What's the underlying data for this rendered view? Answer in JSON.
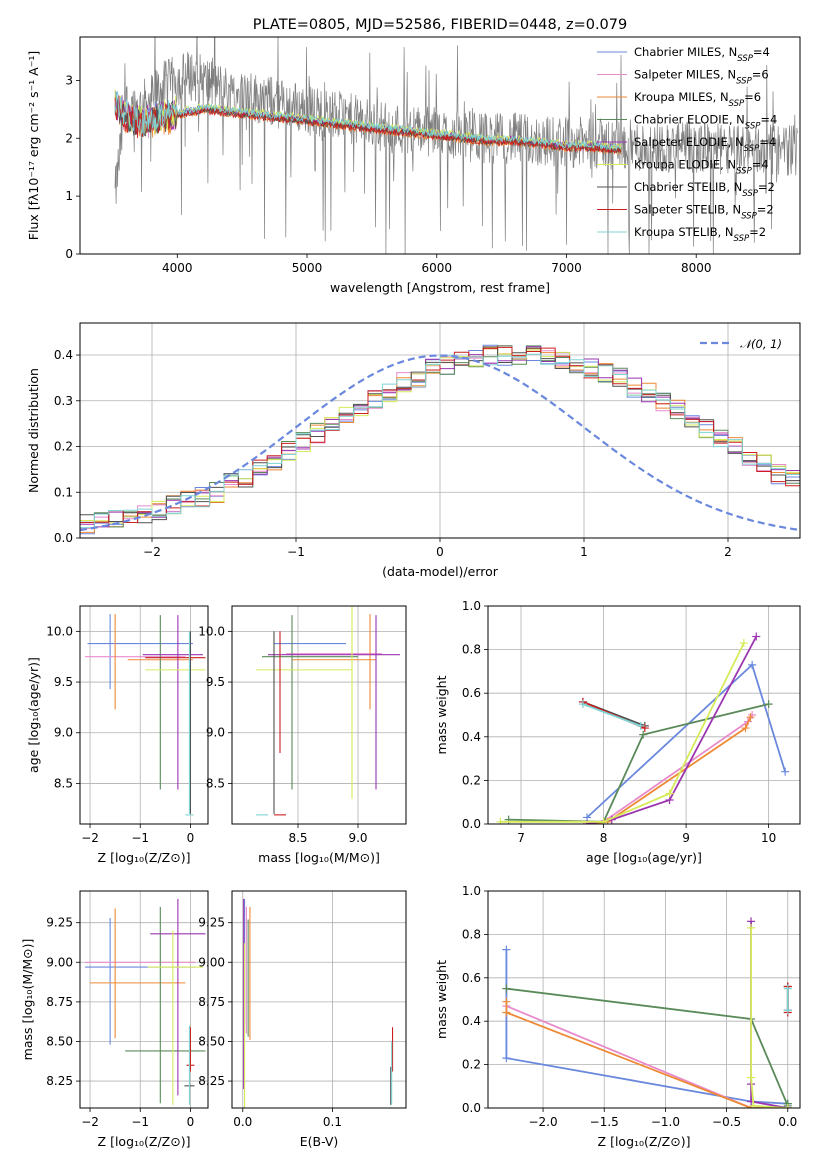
{
  "colors": {
    "chabrier_miles": "#6a88dd",
    "salpeter_miles": "#e88bcb",
    "kroupa_miles": "#ee8a35",
    "chabrier_elodie": "#5a8a5a",
    "salpeter_elodie": "#9b35b0",
    "kroupa_elodie": "#d6ea5a",
    "chabrier_stelib": "#505050",
    "salpeter_stelib": "#cc1f1f",
    "kroupa_stelib": "#7fd4d4",
    "data": "#7f7f7f"
  },
  "chart_data": [
    {
      "id": "spectrum",
      "type": "line",
      "title": "PLATE=0805, MJD=52586, FIBERID=0448, z=0.079",
      "xlabel": "wavelength [Angstrom, rest frame]",
      "ylabel": "Flux [fλ10⁻¹⁷ erg cm⁻² s⁻¹ A⁻¹]",
      "xlim": [
        3250,
        8800
      ],
      "ylim": [
        0,
        3.75
      ],
      "xticks": [
        4000,
        5000,
        6000,
        7000,
        8000
      ],
      "yticks": [
        0,
        1,
        2,
        3
      ],
      "grid": false,
      "legend_position": "top-right",
      "legend": [
        {
          "text": "Chabrier MILES, N",
          "sub": "SSP",
          "suffix": "=4",
          "color": "chabrier_miles"
        },
        {
          "text": "Salpeter MILES, N",
          "sub": "SSP",
          "suffix": "=6",
          "color": "salpeter_miles"
        },
        {
          "text": "Kroupa MILES, N",
          "sub": "SSP",
          "suffix": "=6",
          "color": "kroupa_miles"
        },
        {
          "text": "Chabrier ELODIE, N",
          "sub": "SSP",
          "suffix": "=4",
          "color": "chabrier_elodie"
        },
        {
          "text": "Salpeter ELODIE, N",
          "sub": "SSP",
          "suffix": "=4",
          "color": "salpeter_elodie"
        },
        {
          "text": "Kroupa ELODIE, N",
          "sub": "SSP",
          "suffix": "=4",
          "color": "kroupa_elodie"
        },
        {
          "text": "Chabrier STELIB, N",
          "sub": "SSP",
          "suffix": "=2",
          "color": "chabrier_stelib"
        },
        {
          "text": "Salpeter STELIB, N",
          "sub": "SSP",
          "suffix": "=2",
          "color": "salpeter_stelib"
        },
        {
          "text": "Kroupa STELIB, N",
          "sub": "SSP",
          "suffix": "=2",
          "color": "kroupa_stelib"
        }
      ],
      "data_x": [
        3520,
        3600,
        3700,
        3800,
        3900,
        4000,
        4100,
        4200,
        4300,
        4400,
        4500,
        4600,
        4700,
        4800,
        4900,
        5000,
        5100,
        5200,
        5300,
        5400,
        5500,
        5600,
        5800,
        6000,
        6200,
        6400,
        6600,
        6800,
        7000,
        7200,
        7400,
        7600,
        7800,
        8000,
        8200,
        8400,
        8600,
        8780
      ],
      "data_y": [
        1.0,
        2.6,
        2.5,
        2.7,
        2.9,
        3.0,
        3.1,
        3.0,
        2.9,
        2.8,
        2.75,
        2.7,
        2.65,
        2.6,
        2.55,
        2.5,
        2.45,
        2.4,
        2.35,
        2.3,
        2.25,
        2.2,
        2.15,
        2.1,
        2.05,
        2.0,
        2.0,
        1.95,
        1.95,
        1.9,
        1.9,
        1.85,
        1.85,
        1.85,
        1.8,
        1.8,
        1.8,
        1.8
      ],
      "model_x": [
        3520,
        3600,
        3700,
        3800,
        3900,
        4000,
        4100,
        4200,
        4400,
        4600,
        4800,
        5000,
        5200,
        5400,
        5600,
        5800,
        6000,
        6200,
        6400,
        6600,
        6800,
        7000,
        7200,
        7420
      ],
      "model_y": [
        2.6,
        2.4,
        2.25,
        2.3,
        2.35,
        2.4,
        2.45,
        2.5,
        2.45,
        2.4,
        2.35,
        2.3,
        2.25,
        2.2,
        2.15,
        2.1,
        2.05,
        2.0,
        1.95,
        1.95,
        1.9,
        1.85,
        1.85,
        1.8
      ]
    },
    {
      "id": "residuals",
      "type": "line",
      "xlabel": "(data-model)/error",
      "ylabel": "Normed distribution",
      "xlim": [
        -2.5,
        2.5
      ],
      "ylim": [
        0,
        0.47
      ],
      "xticks": [
        -2,
        -1,
        0,
        1,
        2
      ],
      "yticks": [
        0.0,
        0.1,
        0.2,
        0.3,
        0.4
      ],
      "grid": true,
      "legend_position": "top-right",
      "legend": [
        {
          "text": "𝒩(0, 1)",
          "color": "chabrier_miles"
        }
      ],
      "bin_width": 0.1,
      "bin_start": -2.5,
      "histogram_base": [
        0.03,
        0.04,
        0.04,
        0.05,
        0.05,
        0.06,
        0.07,
        0.08,
        0.09,
        0.1,
        0.12,
        0.13,
        0.15,
        0.17,
        0.19,
        0.21,
        0.23,
        0.25,
        0.27,
        0.29,
        0.3,
        0.32,
        0.34,
        0.35,
        0.37,
        0.38,
        0.39,
        0.39,
        0.4,
        0.4,
        0.4,
        0.4,
        0.4,
        0.39,
        0.38,
        0.37,
        0.36,
        0.35,
        0.33,
        0.32,
        0.3,
        0.28,
        0.26,
        0.24,
        0.22,
        0.2,
        0.18,
        0.16,
        0.14,
        0.13,
        0.11,
        0.1,
        0.09,
        0.08,
        0.07,
        0.06,
        0.05,
        0.05,
        0.04,
        0.04
      ],
      "gaussian_mean": 0,
      "gaussian_sigma": 1
    },
    {
      "id": "age_vs_z",
      "type": "scatter",
      "xlabel": "Z [log₁₀(Z/Z⊙)]",
      "ylabel": "age  [log₁₀(age/yr)]",
      "xlim": [
        -2.2,
        0.35
      ],
      "ylim": [
        8.1,
        10.25
      ],
      "xticks": [
        -2,
        -1,
        0
      ],
      "yticks": [
        8.5,
        9.0,
        9.5,
        10.0
      ],
      "grid": true,
      "errorbars": [
        {
          "color": "chabrier_miles",
          "x": -1.0,
          "xerr": 1.05,
          "y": 9.88,
          "yerr": 0
        },
        {
          "color": "chabrier_miles",
          "x": -1.6,
          "xerr": 0,
          "y": 9.8,
          "yerr": 0.37
        },
        {
          "color": "salpeter_miles",
          "x": -1.1,
          "xerr": 1.0,
          "y": 9.75,
          "yerr": 0
        },
        {
          "color": "kroupa_miles",
          "x": -1.5,
          "xerr": 0,
          "y": 9.7,
          "yerr": 0.47
        },
        {
          "color": "kroupa_miles",
          "x": -0.6,
          "xerr": 0.65,
          "y": 9.72,
          "yerr": 0
        },
        {
          "color": "chabrier_elodie",
          "x": -0.6,
          "xerr": 0,
          "y": 9.3,
          "yerr": 0.86
        },
        {
          "color": "salpeter_elodie",
          "x": -0.35,
          "xerr": 0.6,
          "y": 9.77,
          "yerr": 0
        },
        {
          "color": "salpeter_elodie",
          "x": -0.25,
          "xerr": 0,
          "y": 9.3,
          "yerr": 0.86
        },
        {
          "color": "kroupa_elodie",
          "x": -0.3,
          "xerr": 0.6,
          "y": 9.62,
          "yerr": 0
        },
        {
          "color": "chabrier_stelib",
          "x": 0.0,
          "xerr": 0,
          "y": 9.1,
          "yerr": 0.9
        },
        {
          "color": "salpeter_stelib",
          "x": -0.3,
          "xerr": 0.6,
          "y": 9.74,
          "yerr": 0
        },
        {
          "color": "kroupa_stelib",
          "x": -0.02,
          "xerr": 0.08,
          "y": 8.19,
          "yerr": 0
        },
        {
          "color": "kroupa_stelib",
          "x": -0.02,
          "xerr": 0,
          "y": 9.1,
          "yerr": 0.9
        }
      ]
    },
    {
      "id": "age_vs_mass",
      "type": "scatter",
      "xlabel": "mass [log₁₀(M/M⊙)]",
      "ylabel": "",
      "xlim": [
        7.95,
        9.4
      ],
      "ylim": [
        8.1,
        10.25
      ],
      "xticks": [
        8.5,
        9.0
      ],
      "yticks": [
        8.5,
        9.0,
        9.5,
        10.0
      ],
      "grid": true,
      "errorbars": [
        {
          "color": "chabrier_miles",
          "x": 8.6,
          "xerr": 0.3,
          "y": 9.88,
          "yerr": 0
        },
        {
          "color": "salpeter_miles",
          "x": 8.8,
          "xerr": 0.4,
          "y": 9.78,
          "yerr": 0
        },
        {
          "color": "kroupa_miles",
          "x": 9.1,
          "xerr": 0,
          "y": 9.7,
          "yerr": 0.47
        },
        {
          "color": "kroupa_miles",
          "x": 8.8,
          "xerr": 0.35,
          "y": 9.72,
          "yerr": 0
        },
        {
          "color": "chabrier_elodie",
          "x": 8.45,
          "xerr": 0,
          "y": 9.3,
          "yerr": 0.86
        },
        {
          "color": "chabrier_elodie",
          "x": 8.6,
          "xerr": 0.4,
          "y": 9.75,
          "yerr": 0
        },
        {
          "color": "salpeter_elodie",
          "x": 9.15,
          "xerr": 0,
          "y": 9.3,
          "yerr": 0.86
        },
        {
          "color": "salpeter_elodie",
          "x": 8.8,
          "xerr": 0.55,
          "y": 9.77,
          "yerr": 0
        },
        {
          "color": "kroupa_elodie",
          "x": 8.95,
          "xerr": 0,
          "y": 9.3,
          "yerr": 0.95
        },
        {
          "color": "kroupa_elodie",
          "x": 8.55,
          "xerr": 0.4,
          "y": 9.62,
          "yerr": 0
        },
        {
          "color": "chabrier_stelib",
          "x": 8.3,
          "xerr": 0,
          "y": 9.1,
          "yerr": 0.9
        },
        {
          "color": "salpeter_stelib",
          "x": 8.35,
          "xerr": 0,
          "y": 9.4,
          "yerr": 0.6
        },
        {
          "color": "salpeter_stelib",
          "x": 8.35,
          "xerr": 0.05,
          "y": 8.19,
          "yerr": 0
        },
        {
          "color": "kroupa_stelib",
          "x": 8.2,
          "xerr": 0.05,
          "y": 8.19,
          "yerr": 0
        }
      ]
    },
    {
      "id": "weight_vs_age",
      "type": "line",
      "xlabel": "age  [log₁₀(age/yr)]",
      "ylabel": "mass weight",
      "xlim": [
        6.6,
        10.38
      ],
      "ylim": [
        0,
        1.0
      ],
      "xticks": [
        7,
        8,
        9,
        10
      ],
      "yticks": [
        0.0,
        0.2,
        0.4,
        0.6,
        0.8,
        1.0
      ],
      "grid": true,
      "series": [
        {
          "color": "chabrier_miles",
          "x": [
            7.8,
            9.8,
            10.2
          ],
          "y": [
            0.03,
            0.73,
            0.24
          ]
        },
        {
          "color": "salpeter_miles",
          "x": [
            7.8,
            8.0,
            9.75,
            9.8
          ],
          "y": [
            0.0,
            0.01,
            0.47,
            0.5
          ]
        },
        {
          "color": "kroupa_miles",
          "x": [
            7.8,
            8.05,
            9.72,
            9.78
          ],
          "y": [
            0.0,
            0.01,
            0.44,
            0.49
          ]
        },
        {
          "color": "chabrier_elodie",
          "x": [
            6.85,
            8.0,
            8.48,
            10.0
          ],
          "y": [
            0.02,
            0.01,
            0.41,
            0.55
          ]
        },
        {
          "color": "salpeter_elodie",
          "x": [
            7.8,
            8.1,
            8.8,
            9.85
          ],
          "y": [
            0.0,
            0.02,
            0.11,
            0.86
          ]
        },
        {
          "color": "kroupa_elodie",
          "x": [
            6.75,
            8.0,
            8.8,
            9.7
          ],
          "y": [
            0.01,
            0.01,
            0.14,
            0.83
          ]
        },
        {
          "color": "chabrier_stelib",
          "x": [
            7.75,
            8.5
          ],
          "y": [
            0.56,
            0.45
          ]
        },
        {
          "color": "salpeter_stelib",
          "x": [
            7.75,
            8.5
          ],
          "y": [
            0.56,
            0.44
          ]
        },
        {
          "color": "kroupa_stelib",
          "x": [
            7.75,
            8.45
          ],
          "y": [
            0.55,
            0.45
          ]
        }
      ]
    },
    {
      "id": "mass_vs_z",
      "type": "scatter",
      "xlabel": "Z [log₁₀(Z/Z⊙)]",
      "ylabel": "mass [log₁₀(M/M⊙)]",
      "xlim": [
        -2.2,
        0.35
      ],
      "ylim": [
        8.08,
        9.45
      ],
      "xticks": [
        -2,
        -1,
        0
      ],
      "yticks": [
        8.25,
        8.5,
        8.75,
        9.0,
        9.25
      ],
      "grid": true,
      "errorbars": [
        {
          "color": "chabrier_miles",
          "x": -1.0,
          "xerr": 1.1,
          "y": 8.97,
          "yerr": 0
        },
        {
          "color": "chabrier_miles",
          "x": -1.6,
          "xerr": 0,
          "y": 8.88,
          "yerr": 0.4
        },
        {
          "color": "salpeter_miles",
          "x": -1.0,
          "xerr": 1.1,
          "y": 9.0,
          "yerr": 0
        },
        {
          "color": "kroupa_miles",
          "x": -1.5,
          "xerr": 0,
          "y": 8.93,
          "yerr": 0.41
        },
        {
          "color": "kroupa_miles",
          "x": -1.05,
          "xerr": 0.95,
          "y": 8.87,
          "yerr": 0
        },
        {
          "color": "chabrier_elodie",
          "x": -0.6,
          "xerr": 0,
          "y": 8.73,
          "yerr": 0.62
        },
        {
          "color": "chabrier_elodie",
          "x": -0.5,
          "xerr": 0.8,
          "y": 8.44,
          "yerr": 0
        },
        {
          "color": "salpeter_elodie",
          "x": -0.25,
          "xerr": 0.55,
          "y": 9.18,
          "yerr": 0
        },
        {
          "color": "salpeter_elodie",
          "x": -0.25,
          "xerr": 0,
          "y": 8.78,
          "yerr": 0.62
        },
        {
          "color": "kroupa_elodie",
          "x": -0.3,
          "xerr": 0.55,
          "y": 8.97,
          "yerr": 0
        },
        {
          "color": "kroupa_elodie",
          "x": -0.35,
          "xerr": 0,
          "y": 8.65,
          "yerr": 0.55
        },
        {
          "color": "chabrier_stelib",
          "x": -0.02,
          "xerr": 0.1,
          "y": 8.22,
          "yerr": 0
        },
        {
          "color": "salpeter_stelib",
          "x": 0.0,
          "xerr": 0.08,
          "y": 8.35,
          "yerr": 0
        },
        {
          "color": "salpeter_stelib",
          "x": 0.0,
          "xerr": 0,
          "y": 8.45,
          "yerr": 0.14
        },
        {
          "color": "kroupa_stelib",
          "x": -0.02,
          "xerr": 0,
          "y": 8.35,
          "yerr": 0.25
        }
      ]
    },
    {
      "id": "mass_vs_ebv",
      "type": "scatter",
      "xlabel": "E(B-V)",
      "ylabel": "",
      "xlim": [
        -0.012,
        0.182
      ],
      "ylim": [
        8.08,
        9.45
      ],
      "xticks": [
        0.0,
        0.1
      ],
      "yticks": [
        8.25,
        8.5,
        8.75,
        9.0,
        9.25
      ],
      "grid": true,
      "errorbars": [
        {
          "color": "chabrier_miles",
          "x": 0.002,
          "xerr": 0,
          "y": 9.0,
          "yerr": 0.4
        },
        {
          "color": "salpeter_miles",
          "x": 0.004,
          "xerr": 0,
          "y": 8.95,
          "yerr": 0.4
        },
        {
          "color": "kroupa_miles",
          "x": 0.008,
          "xerr": 0,
          "y": 8.93,
          "yerr": 0.42
        },
        {
          "color": "chabrier_elodie",
          "x": 0.006,
          "xerr": 0,
          "y": 8.9,
          "yerr": 0.37
        },
        {
          "color": "salpeter_elodie",
          "x": 0.001,
          "xerr": 0,
          "y": 8.8,
          "yerr": 0.6
        },
        {
          "color": "kroupa_elodie",
          "x": 0.002,
          "xerr": 0,
          "y": 8.6,
          "yerr": 0.52
        },
        {
          "color": "chabrier_stelib",
          "x": 0.165,
          "xerr": 0,
          "y": 8.22,
          "yerr": 0.12
        },
        {
          "color": "salpeter_stelib",
          "x": 0.167,
          "xerr": 0,
          "y": 8.45,
          "yerr": 0.14
        },
        {
          "color": "kroupa_stelib",
          "x": 0.166,
          "xerr": 0,
          "y": 8.3,
          "yerr": 0.2
        }
      ]
    },
    {
      "id": "weight_vs_z",
      "type": "line",
      "xlabel": "Z [log₁₀(Z/Z⊙)]",
      "ylabel": "mass weight",
      "xlim": [
        -2.45,
        0.1
      ],
      "ylim": [
        0,
        1.0
      ],
      "xticks": [
        -2.0,
        -1.5,
        -1.0,
        -0.5,
        0.0
      ],
      "yticks": [
        0.0,
        0.2,
        0.4,
        0.6,
        0.8,
        1.0
      ],
      "grid": true,
      "series": [
        {
          "color": "chabrier_miles",
          "x": [
            -2.3,
            -2.3,
            -0.3,
            0.0
          ],
          "y": [
            0.73,
            0.23,
            0.03,
            0.02
          ]
        },
        {
          "color": "salpeter_miles",
          "x": [
            -2.3,
            -0.3,
            0.0
          ],
          "y": [
            0.47,
            0.0,
            0.0
          ]
        },
        {
          "color": "kroupa_miles",
          "x": [
            -2.3,
            -2.3,
            -0.3,
            0.0
          ],
          "y": [
            0.49,
            0.44,
            0.0,
            0.0
          ]
        },
        {
          "color": "chabrier_elodie",
          "x": [
            -2.3,
            -0.3,
            0.0,
            0.0
          ],
          "y": [
            0.55,
            0.41,
            0.01,
            0.02
          ]
        },
        {
          "color": "salpeter_elodie",
          "x": [
            -0.3,
            -0.3,
            -0.3,
            0.0
          ],
          "y": [
            0.86,
            0.11,
            0.03,
            0.0
          ]
        },
        {
          "color": "kroupa_elodie",
          "x": [
            -0.3,
            -0.3,
            -0.28,
            0.0
          ],
          "y": [
            0.83,
            0.14,
            0.01,
            0.0
          ]
        },
        {
          "color": "chabrier_stelib",
          "x": [
            0.0,
            0.0
          ],
          "y": [
            0.56,
            0.45
          ]
        },
        {
          "color": "salpeter_stelib",
          "x": [
            0.0,
            0.0
          ],
          "y": [
            0.56,
            0.44
          ]
        },
        {
          "color": "kroupa_stelib",
          "x": [
            0.0,
            0.0
          ],
          "y": [
            0.55,
            0.45
          ]
        }
      ]
    }
  ]
}
